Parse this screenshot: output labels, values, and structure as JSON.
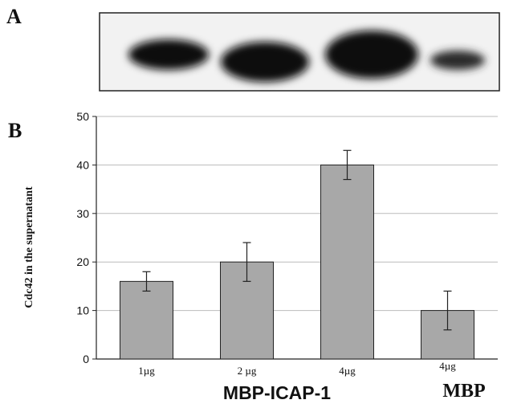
{
  "panels": {
    "a": "A",
    "b": "B"
  },
  "chart_data": {
    "type": "bar",
    "title": "",
    "xlabel": "",
    "ylabel": "Cdc42 in the supernatant",
    "ylim": [
      0,
      50
    ],
    "yticks": [
      0,
      10,
      20,
      30,
      40,
      50
    ],
    "grid": true,
    "categories": [
      "1µg",
      "2 µg",
      "4µg",
      "4µg"
    ],
    "values": [
      16,
      20,
      40,
      10
    ],
    "errors": [
      2,
      4,
      3,
      4
    ],
    "groups": [
      {
        "label": "MBP-ICAP-1",
        "categories": [
          0,
          1,
          2
        ]
      },
      {
        "label": "MBP",
        "categories": [
          3
        ]
      }
    ],
    "bar_color": "#a8a8a8"
  }
}
